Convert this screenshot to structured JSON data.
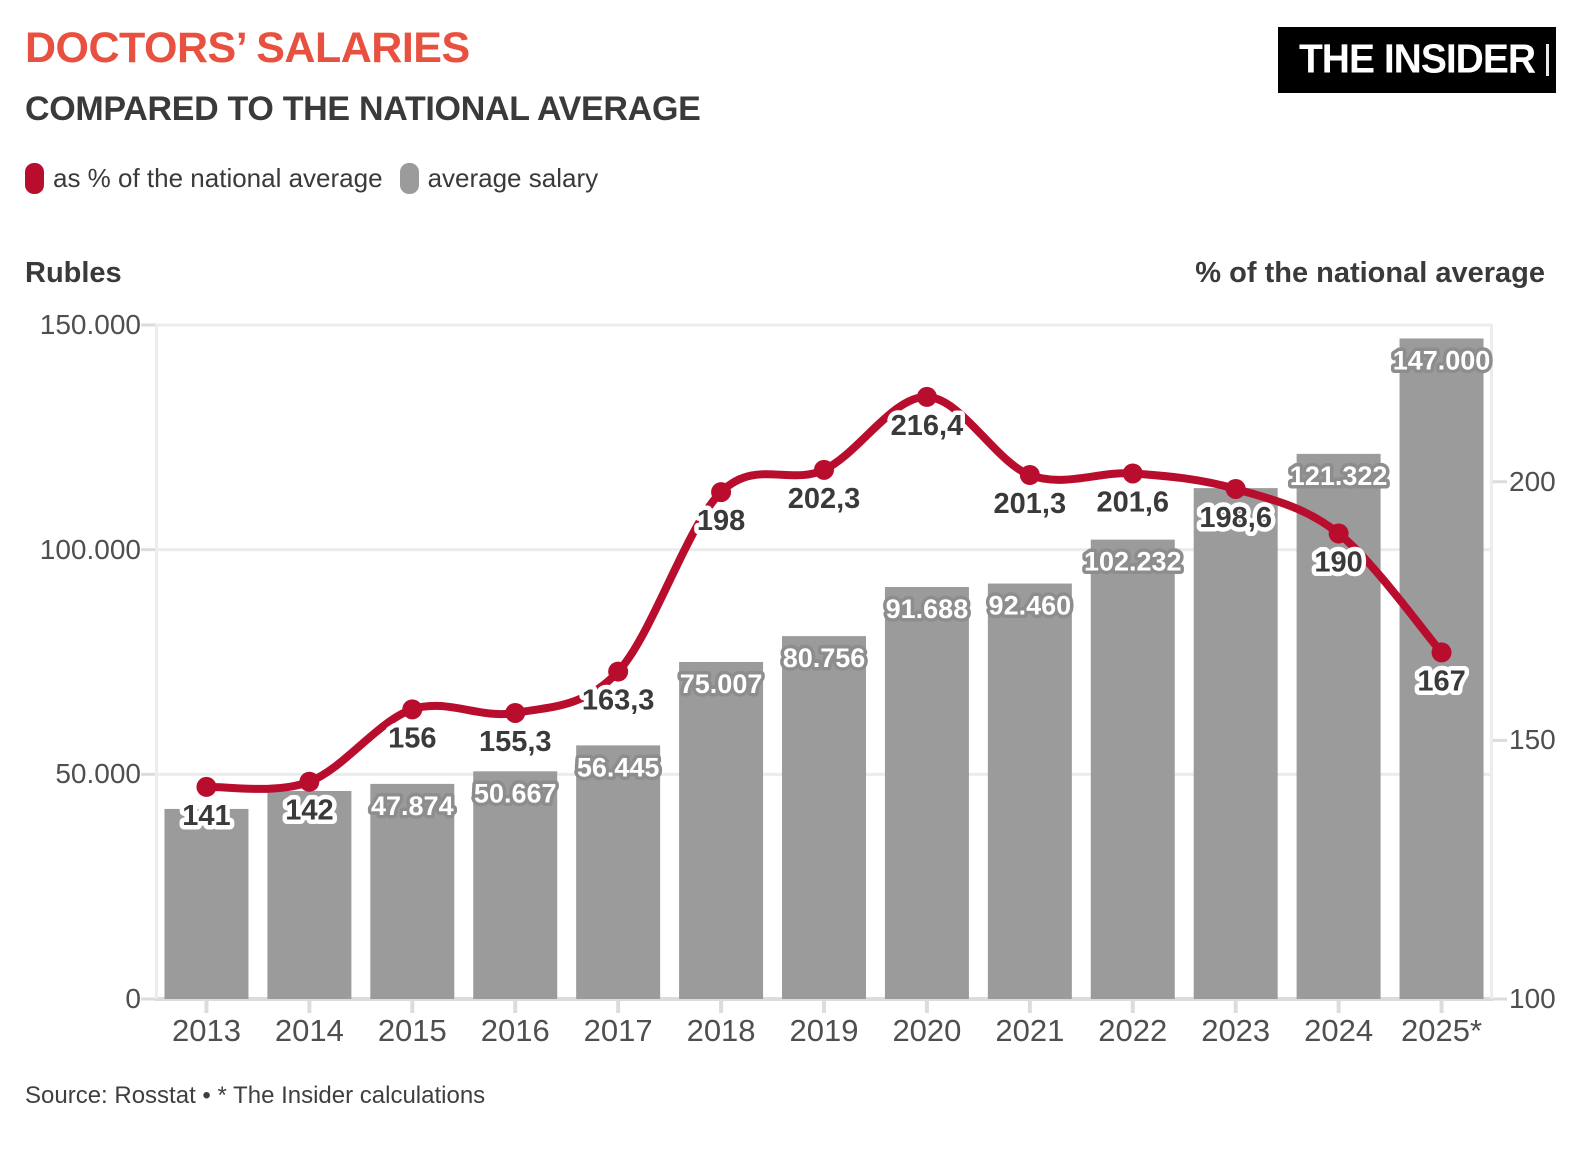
{
  "header": {
    "title": "DOCTORS’ SALARIES",
    "subtitle": "COMPARED TO THE NATIONAL AVERAGE",
    "logo": "THE INSIDER"
  },
  "legend": [
    {
      "label": "as % of the national average",
      "color": "#b90d2e"
    },
    {
      "label": "average salary",
      "color": "#9b9b9b"
    }
  ],
  "footer": {
    "source": "Source: Rosstat • * The Insider calculations"
  },
  "colors": {
    "title_red": "#e8513f",
    "accent_red": "#b90d2e",
    "bar_gray": "#9b9b9b",
    "bar_label_halo": "#8d8d8d",
    "text_dark": "#3a3a3a",
    "tick_text": "#4f4f4f",
    "grid_line": "#ececec",
    "axis_line": "#dcdcdc",
    "logo_bg": "#000000",
    "logo_text": "#ffffff"
  },
  "chart_data": {
    "type": "bar+line",
    "title": "Doctors' salaries compared to the national average",
    "grid": true,
    "legend_position": "top-left",
    "categories": [
      "2013",
      "2014",
      "2015",
      "2016",
      "2017",
      "2018",
      "2019",
      "2020",
      "2021",
      "2022",
      "2023",
      "2024",
      "2025*"
    ],
    "left_axis": {
      "title": "Rubles",
      "min": 0,
      "max": 150000,
      "ticks": [
        {
          "value": 150000,
          "label": "150.000"
        },
        {
          "value": 100000,
          "label": "100.000"
        },
        {
          "value": 50000,
          "label": "50.000"
        },
        {
          "value": 0,
          "label": "0"
        }
      ]
    },
    "right_axis": {
      "title": "% of the national average",
      "min": 100,
      "max": 230.3,
      "ticks": [
        {
          "value": 200,
          "label": "200"
        },
        {
          "value": 150,
          "label": "150"
        },
        {
          "value": 100,
          "label": "100"
        }
      ]
    },
    "series": [
      {
        "name": "average salary",
        "type": "bar",
        "axis": "left",
        "color": "#9b9b9b",
        "values": [
          42300,
          46300,
          47874,
          50667,
          56445,
          75007,
          80756,
          91688,
          92460,
          102232,
          113700,
          121322,
          147000
        ],
        "labels": [
          "",
          "",
          "47.874",
          "50.667",
          "56.445",
          "75.007",
          "80.756",
          "91.688",
          "92.460",
          "102.232",
          "",
          "121.322",
          "147.000"
        ]
      },
      {
        "name": "as % of the national average",
        "type": "line",
        "axis": "right",
        "color": "#b90d2e",
        "values": [
          141,
          142,
          156,
          155.3,
          163.3,
          198,
          202.3,
          216.4,
          201.3,
          201.6,
          198.6,
          190,
          167
        ],
        "labels": [
          "141",
          "142",
          "156",
          "155,3",
          "163,3",
          "198",
          "202,3",
          "216,4",
          "201,3",
          "201,6",
          "198,6",
          "190",
          "167"
        ]
      }
    ]
  }
}
